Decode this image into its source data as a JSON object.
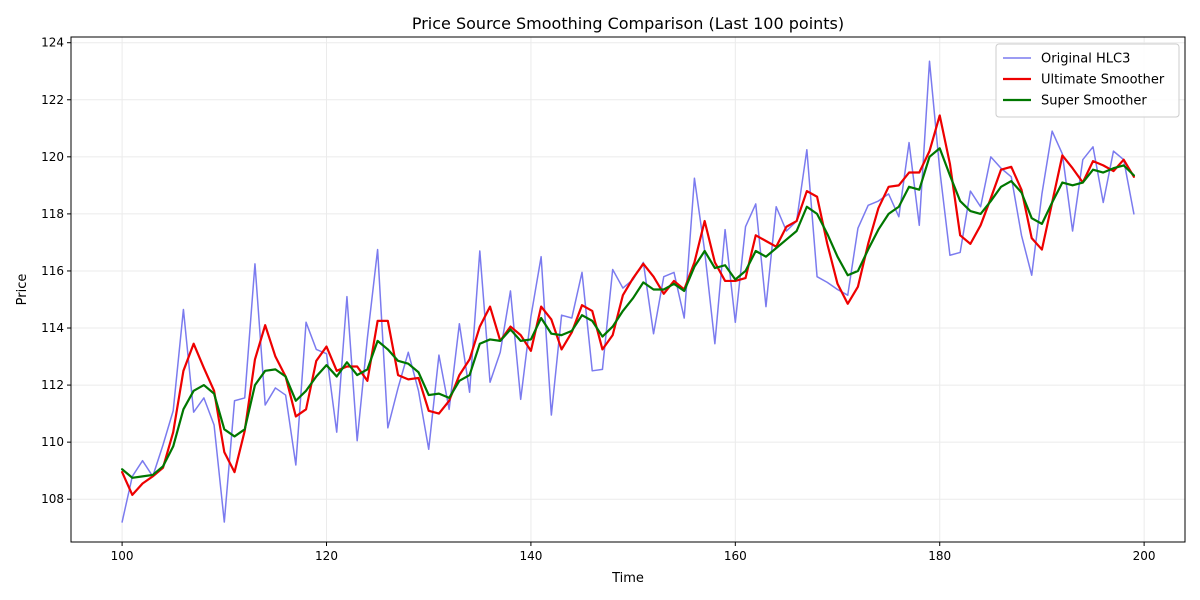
{
  "chart_data": {
    "type": "line",
    "title": "Price Source Smoothing Comparison (Last 100 points)",
    "xlabel": "Time",
    "ylabel": "Price",
    "xlim": [
      95,
      204
    ],
    "ylim": [
      106.5,
      124.2
    ],
    "x_ticks": [
      100,
      120,
      140,
      160,
      180,
      200
    ],
    "y_ticks": [
      108,
      110,
      112,
      114,
      116,
      118,
      120,
      122,
      124
    ],
    "grid": true,
    "legend_position": "top-right",
    "x": [
      100,
      101,
      102,
      103,
      104,
      105,
      106,
      107,
      108,
      109,
      110,
      111,
      112,
      113,
      114,
      115,
      116,
      117,
      118,
      119,
      120,
      121,
      122,
      123,
      124,
      125,
      126,
      127,
      128,
      129,
      130,
      131,
      132,
      133,
      134,
      135,
      136,
      137,
      138,
      139,
      140,
      141,
      142,
      143,
      144,
      145,
      146,
      147,
      148,
      149,
      150,
      151,
      152,
      153,
      154,
      155,
      156,
      157,
      158,
      159,
      160,
      161,
      162,
      163,
      164,
      165,
      166,
      167,
      168,
      169,
      170,
      171,
      172,
      173,
      174,
      175,
      176,
      177,
      178,
      179,
      180,
      181,
      182,
      183,
      184,
      185,
      186,
      187,
      188,
      189,
      190,
      191,
      192,
      193,
      194,
      195,
      196,
      197,
      198,
      199
    ],
    "series": [
      {
        "name": "Original HLC3",
        "color": "#7b7bef",
        "width": 1.5,
        "values": [
          107.2,
          108.8,
          109.35,
          108.8,
          109.9,
          111.1,
          114.65,
          111.05,
          111.55,
          110.6,
          107.2,
          111.45,
          111.55,
          116.25,
          111.3,
          111.9,
          111.65,
          109.2,
          114.2,
          113.25,
          113.1,
          110.35,
          115.1,
          110.05,
          113.65,
          116.75,
          110.5,
          111.9,
          113.15,
          111.8,
          109.75,
          113.05,
          111.15,
          114.15,
          111.75,
          116.7,
          112.1,
          113.15,
          115.3,
          111.5,
          114.4,
          116.5,
          110.95,
          114.45,
          114.35,
          115.95,
          112.5,
          112.55,
          116.05,
          115.4,
          115.7,
          116.3,
          113.8,
          115.8,
          115.95,
          114.35,
          119.25,
          116.7,
          113.45,
          117.45,
          114.2,
          117.55,
          118.35,
          114.75,
          118.25,
          117.4,
          117.75,
          120.25,
          115.8,
          115.6,
          115.35,
          115.15,
          117.5,
          118.3,
          118.45,
          118.7,
          117.9,
          120.5,
          117.6,
          123.35,
          119.55,
          116.55,
          116.65,
          118.8,
          118.25,
          120.0,
          119.6,
          119.3,
          117.25,
          115.85,
          118.7,
          120.9,
          120.1,
          117.4,
          119.9,
          120.35,
          118.4,
          120.2,
          119.9,
          118.0
        ]
      },
      {
        "name": "Ultimate Smoother",
        "color": "#ee0000",
        "width": 2.2,
        "values": [
          108.95,
          108.15,
          108.55,
          108.8,
          109.1,
          110.35,
          112.5,
          113.45,
          112.6,
          111.8,
          109.65,
          108.95,
          110.4,
          112.9,
          114.1,
          113.0,
          112.3,
          110.9,
          111.15,
          112.85,
          113.35,
          112.5,
          112.65,
          112.65,
          112.15,
          114.25,
          114.25,
          112.35,
          112.2,
          112.25,
          111.1,
          111.0,
          111.45,
          112.35,
          112.9,
          114.05,
          114.75,
          113.55,
          114.05,
          113.75,
          113.2,
          114.75,
          114.3,
          113.25,
          113.85,
          114.8,
          114.6,
          113.25,
          113.75,
          115.15,
          115.75,
          116.25,
          115.8,
          115.2,
          115.65,
          115.35,
          116.3,
          117.75,
          116.3,
          115.65,
          115.65,
          115.75,
          117.25,
          117.05,
          116.85,
          117.55,
          117.75,
          118.8,
          118.6,
          116.95,
          115.55,
          114.85,
          115.45,
          116.95,
          118.2,
          118.95,
          119.0,
          119.45,
          119.45,
          120.2,
          121.45,
          119.75,
          117.25,
          116.95,
          117.6,
          118.55,
          119.55,
          119.65,
          118.85,
          117.15,
          116.75,
          118.4,
          120.05,
          119.6,
          119.1,
          119.85,
          119.7,
          119.5,
          119.9,
          119.3
        ]
      },
      {
        "name": "Super Smoother",
        "color": "#007700",
        "width": 2.2,
        "values": [
          109.05,
          108.75,
          108.8,
          108.85,
          109.15,
          109.85,
          111.15,
          111.8,
          112.0,
          111.7,
          110.45,
          110.2,
          110.45,
          112.0,
          112.5,
          112.55,
          112.3,
          111.45,
          111.8,
          112.3,
          112.7,
          112.3,
          112.8,
          112.35,
          112.55,
          113.55,
          113.25,
          112.85,
          112.75,
          112.45,
          111.65,
          111.7,
          111.55,
          112.15,
          112.35,
          113.45,
          113.6,
          113.55,
          113.95,
          113.55,
          113.6,
          114.35,
          113.8,
          113.75,
          113.9,
          114.45,
          114.25,
          113.7,
          114.05,
          114.6,
          115.05,
          115.6,
          115.35,
          115.35,
          115.55,
          115.3,
          116.15,
          116.7,
          116.1,
          116.2,
          115.7,
          116.0,
          116.7,
          116.5,
          116.8,
          117.1,
          117.4,
          118.25,
          118.0,
          117.3,
          116.5,
          115.85,
          116.0,
          116.75,
          117.45,
          118.0,
          118.25,
          118.95,
          118.85,
          120.0,
          120.3,
          119.35,
          118.45,
          118.1,
          118.0,
          118.45,
          118.95,
          119.15,
          118.75,
          117.85,
          117.65,
          118.4,
          119.1,
          119.0,
          119.1,
          119.55,
          119.45,
          119.6,
          119.7,
          119.35
        ]
      }
    ]
  }
}
